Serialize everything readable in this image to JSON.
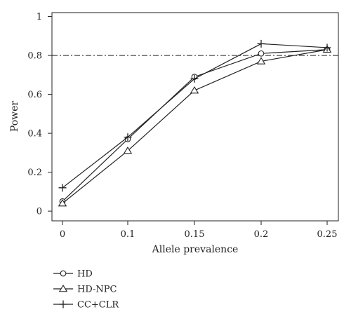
{
  "chart_data": {
    "type": "line",
    "title": "",
    "xlabel": "Allele prevalence",
    "ylabel": "Power",
    "categories": [
      "0",
      "0.1",
      "0.15",
      "0.2",
      "0.25"
    ],
    "yticks": [
      "0",
      "0.2",
      "0.4",
      "0.6",
      "0.8",
      "1"
    ],
    "ylim": [
      -0.05,
      1.02
    ],
    "reference_line": {
      "y": 0.8,
      "style": "dash-dot"
    },
    "legend_position": "bottom-left",
    "series": [
      {
        "name": "HD",
        "marker": "circle",
        "values": [
          0.05,
          0.37,
          0.69,
          0.81,
          0.83
        ]
      },
      {
        "name": "HD-NPC",
        "marker": "triangle",
        "values": [
          0.04,
          0.31,
          0.62,
          0.77,
          0.83
        ]
      },
      {
        "name": "CC+CLR",
        "marker": "plus",
        "values": [
          0.12,
          0.38,
          0.68,
          0.86,
          0.84
        ]
      }
    ]
  }
}
